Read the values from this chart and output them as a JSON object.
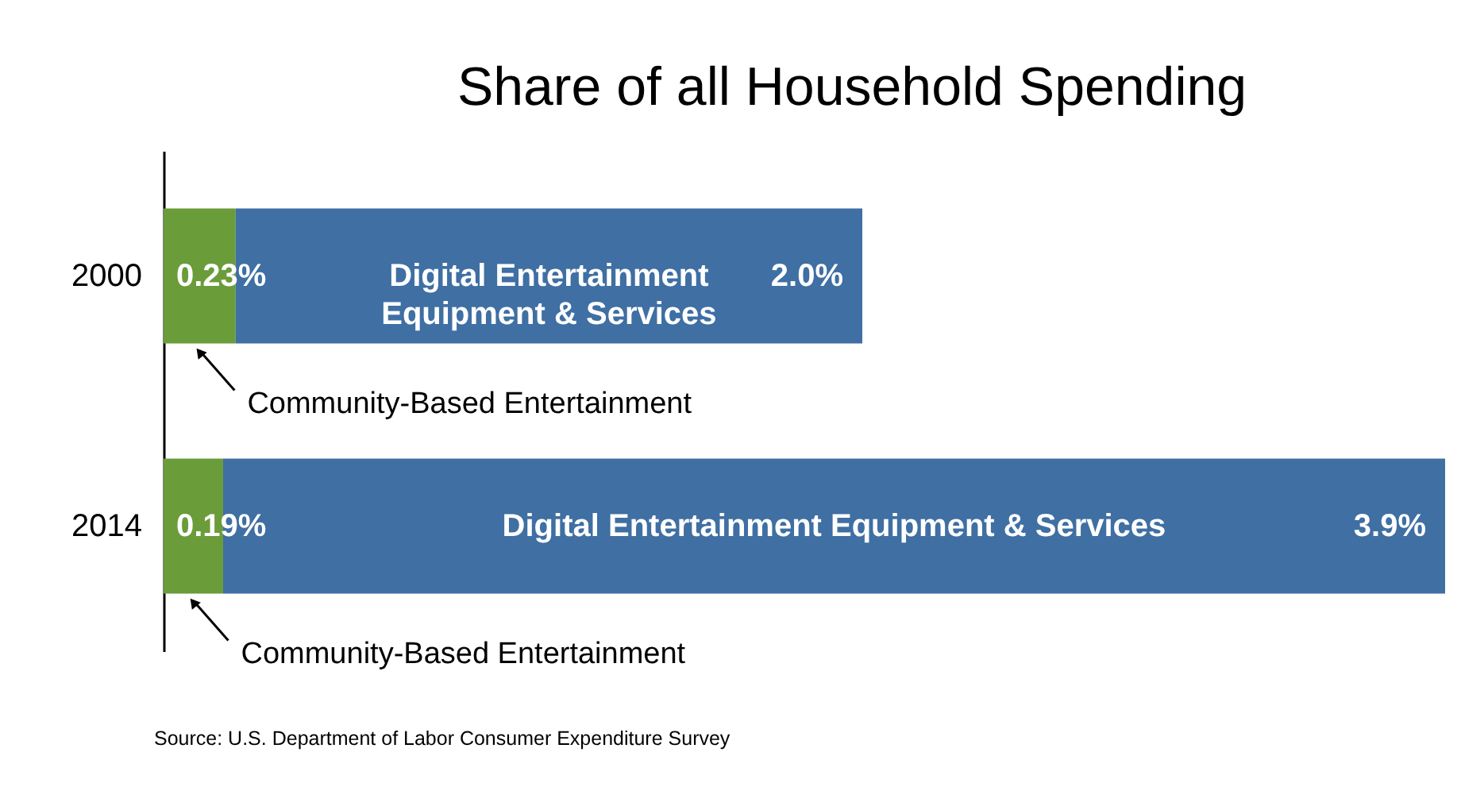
{
  "chart_data": {
    "type": "bar",
    "orientation": "horizontal",
    "stacked": true,
    "title": "Share of all Household Spending",
    "categories": [
      "2000",
      "2014"
    ],
    "series": [
      {
        "name": "Community-Based Entertainment",
        "color": "#6a9c3a",
        "values": [
          0.23,
          0.19
        ],
        "value_labels": [
          "0.23%",
          "0.19%"
        ]
      },
      {
        "name": "Digital Entertainment Equipment & Services",
        "color": "#3f6fa3",
        "values": [
          2.0,
          3.9
        ],
        "value_labels": [
          "2.0%",
          "3.9%"
        ]
      }
    ],
    "annotations": [
      "Source: U.S. Department of Labor Consumer Expenditure Survey"
    ]
  }
}
